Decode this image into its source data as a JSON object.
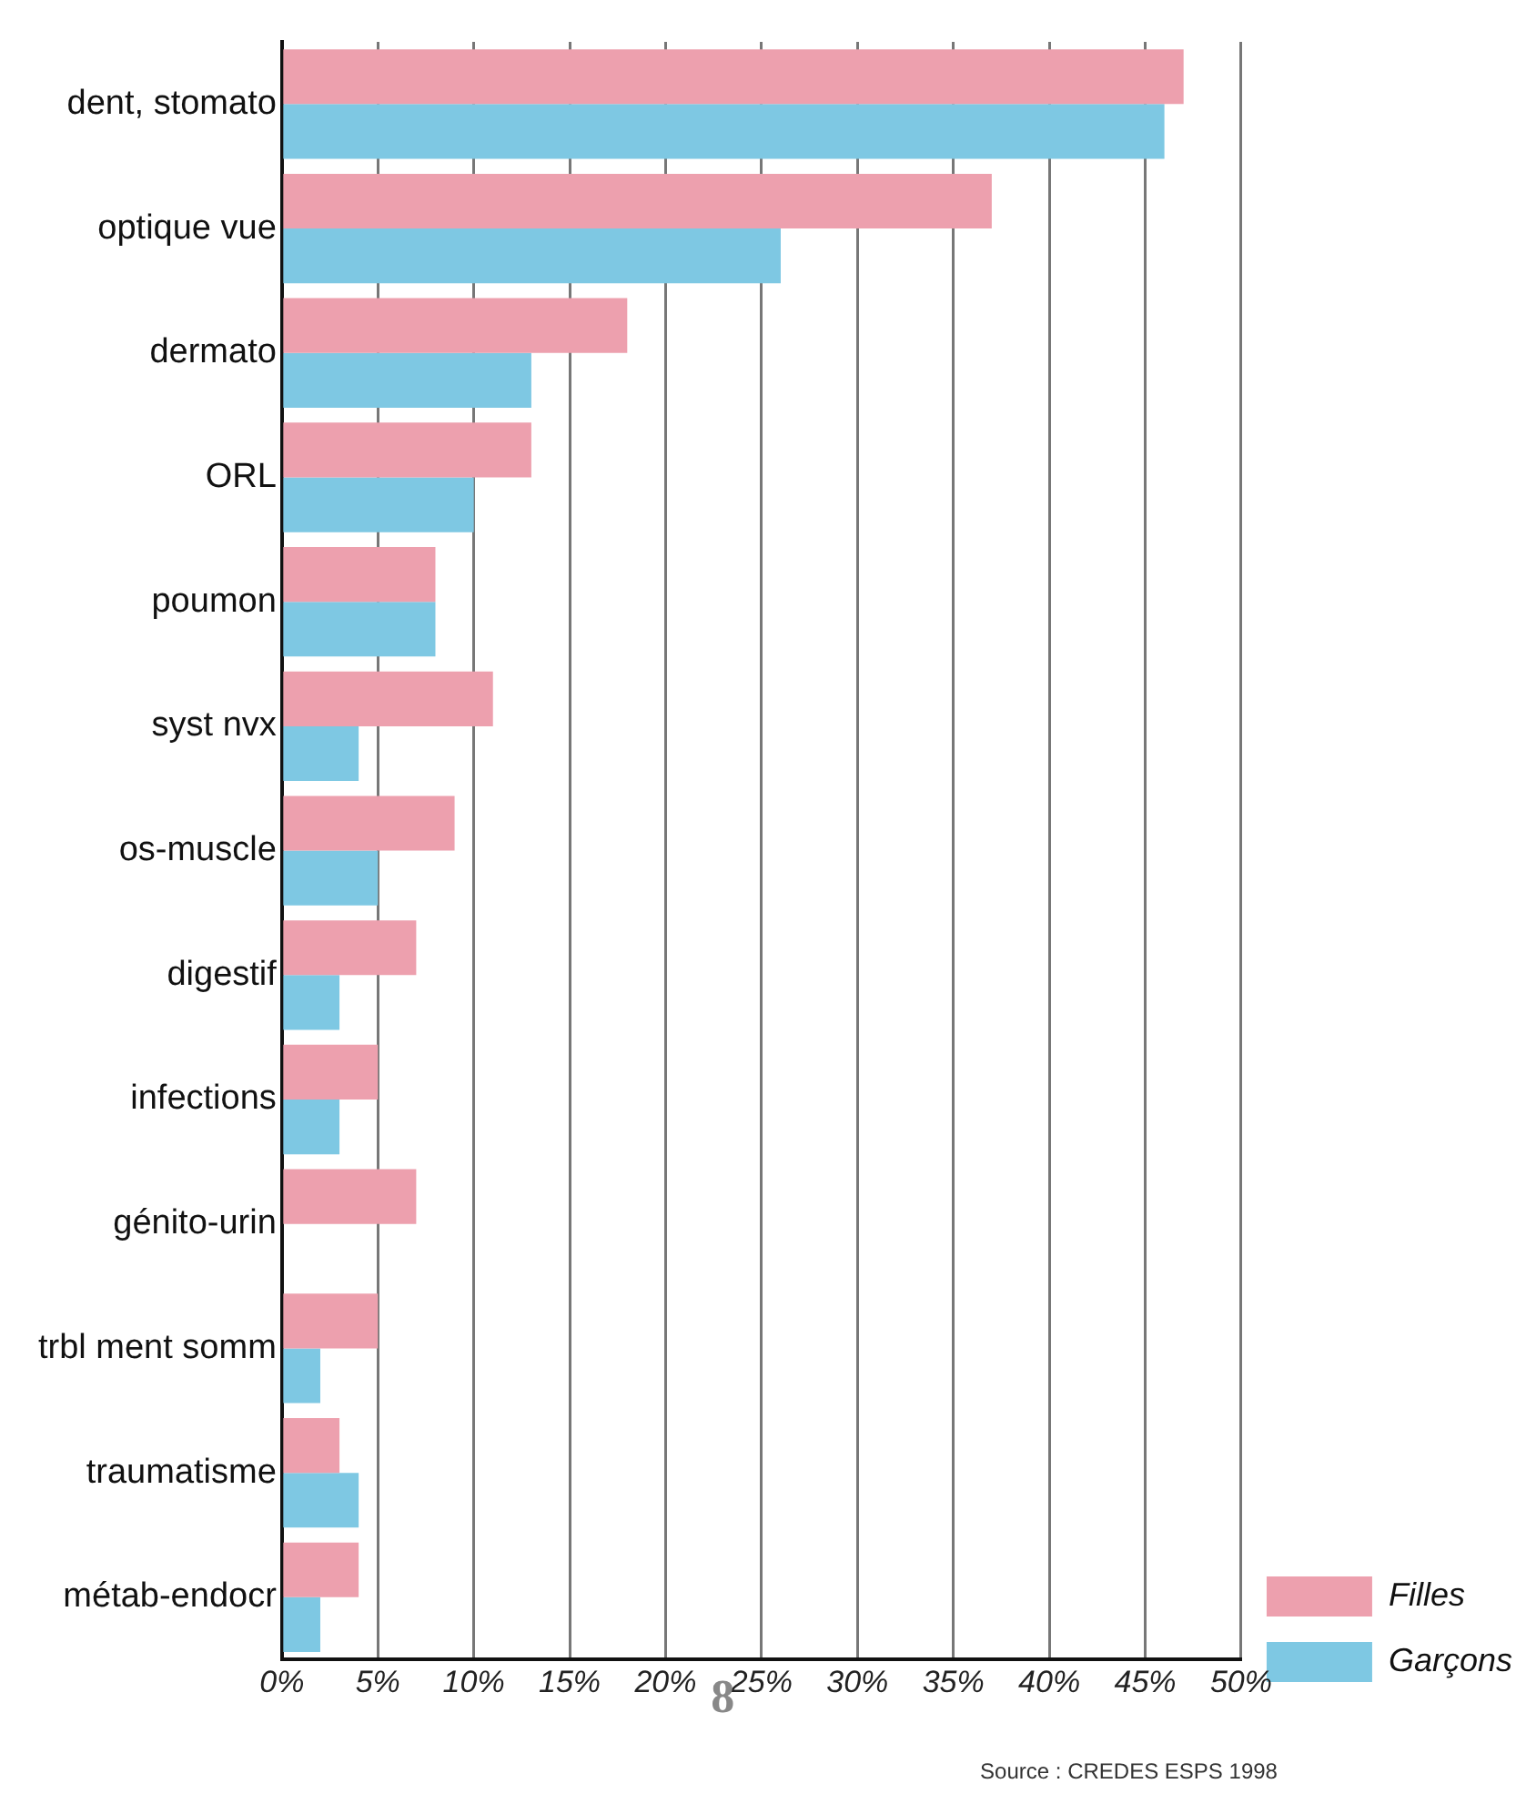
{
  "chart_data": {
    "type": "bar",
    "orientation": "horizontal",
    "categories": [
      "dent, stomato",
      "optique vue",
      "dermato",
      "ORL",
      "poumon",
      "syst nvx",
      "os-muscle",
      "digestif",
      "infections",
      "génito-urin",
      "trbl ment somm",
      "traumatisme",
      "métab-endocr"
    ],
    "series": [
      {
        "name": "Filles",
        "color": "#eda0ae",
        "values": [
          47,
          37,
          18,
          13,
          8,
          11,
          9,
          7,
          5,
          7,
          5,
          3,
          4
        ]
      },
      {
        "name": "Garçons",
        "color": "#7ec8e3",
        "values": [
          46,
          26,
          13,
          10,
          8,
          4,
          5,
          3,
          3,
          0,
          2,
          4,
          2
        ]
      }
    ],
    "xlim": [
      0,
      50
    ],
    "xticks": [
      {
        "value": 0,
        "label": "0%"
      },
      {
        "value": 5,
        "label": "5%"
      },
      {
        "value": 10,
        "label": "10%"
      },
      {
        "value": 15,
        "label": "15%"
      },
      {
        "value": 20,
        "label": "20%"
      },
      {
        "value": 25,
        "label": "25%"
      },
      {
        "value": 30,
        "label": "30%"
      },
      {
        "value": 35,
        "label": "35%"
      },
      {
        "value": 40,
        "label": "40%"
      },
      {
        "value": 45,
        "label": "45%"
      },
      {
        "value": 50,
        "label": "50%"
      }
    ],
    "grid": "x",
    "legend": "bottom right",
    "annotations": [
      "8",
      "Source : CREDES ESPS 1998"
    ]
  }
}
